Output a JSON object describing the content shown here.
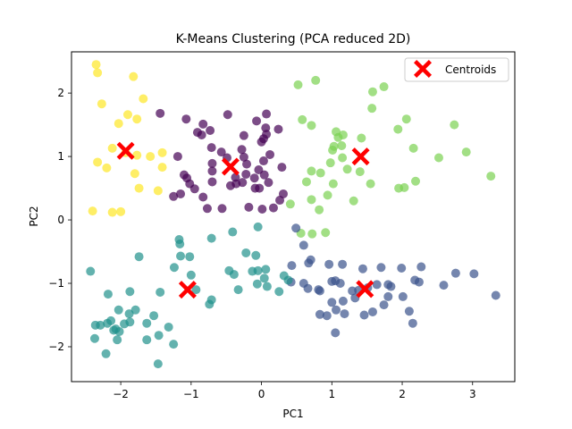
{
  "chart_data": {
    "type": "scatter",
    "title": "K-Means Clustering (PCA reduced 2D)",
    "xlabel": "PC1",
    "ylabel": "PC2",
    "xlim": [
      -2.7,
      3.6
    ],
    "ylim": [
      -2.55,
      2.65
    ],
    "xticks": [
      -2,
      -1,
      0,
      1,
      2,
      3
    ],
    "yticks": [
      -2,
      -1,
      0,
      1,
      2
    ],
    "grid": false,
    "legend": {
      "position": "top-right",
      "entries": [
        "Centroids"
      ]
    },
    "centroid_color": "#ff0000",
    "series": [
      {
        "color": "#fde725",
        "points": [
          [
            -2.35,
            2.45
          ],
          [
            -2.33,
            2.32
          ],
          [
            -1.82,
            2.26
          ],
          [
            -2.27,
            1.83
          ],
          [
            -1.68,
            1.91
          ],
          [
            -2.03,
            1.52
          ],
          [
            -1.9,
            1.66
          ],
          [
            -1.77,
            1.59
          ],
          [
            -2.12,
            1.13
          ],
          [
            -1.93,
            1.06
          ],
          [
            -1.77,
            1.02
          ],
          [
            -1.58,
            1.0
          ],
          [
            -1.41,
            1.06
          ],
          [
            -2.33,
            0.91
          ],
          [
            -2.2,
            0.82
          ],
          [
            -1.8,
            0.73
          ],
          [
            -1.41,
            0.83
          ],
          [
            -1.74,
            0.5
          ],
          [
            -1.47,
            0.46
          ],
          [
            -2.4,
            0.14
          ],
          [
            -2.12,
            0.12
          ],
          [
            -2.0,
            0.13
          ]
        ]
      },
      {
        "color": "#440154",
        "points": [
          [
            -1.44,
            1.68
          ],
          [
            -1.07,
            1.59
          ],
          [
            -0.83,
            1.51
          ],
          [
            -0.73,
            1.41
          ],
          [
            -0.48,
            1.66
          ],
          [
            -0.91,
            1.38
          ],
          [
            -0.85,
            1.34
          ],
          [
            -0.25,
            1.33
          ],
          [
            -0.07,
            1.56
          ],
          [
            0.07,
            1.67
          ],
          [
            0.06,
            1.45
          ],
          [
            0.24,
            1.43
          ],
          [
            -0.71,
            1.14
          ],
          [
            -0.57,
            1.07
          ],
          [
            -0.28,
            1.11
          ],
          [
            0.0,
            1.23
          ],
          [
            0.07,
            1.35
          ],
          [
            0.03,
            1.28
          ],
          [
            -1.19,
            1.0
          ],
          [
            -0.7,
            0.89
          ],
          [
            -0.49,
            0.98
          ],
          [
            -0.25,
            0.99
          ],
          [
            0.12,
            1.03
          ],
          [
            0.03,
            0.93
          ],
          [
            -0.21,
            0.88
          ],
          [
            -0.04,
            0.79
          ],
          [
            0.29,
            0.83
          ],
          [
            -0.7,
            0.77
          ],
          [
            -0.37,
            0.67
          ],
          [
            -0.22,
            0.72
          ],
          [
            -0.1,
            0.66
          ],
          [
            0.04,
            0.71
          ],
          [
            -1.1,
            0.71
          ],
          [
            -1.06,
            0.66
          ],
          [
            -1.02,
            0.57
          ],
          [
            -0.7,
            0.6
          ],
          [
            -0.44,
            0.54
          ],
          [
            -0.36,
            0.57
          ],
          [
            -0.27,
            0.59
          ],
          [
            -0.09,
            0.5
          ],
          [
            -0.03,
            0.5
          ],
          [
            0.1,
            0.59
          ],
          [
            -1.15,
            0.41
          ],
          [
            -1.25,
            0.37
          ],
          [
            -0.95,
            0.49
          ],
          [
            -0.83,
            0.36
          ],
          [
            0.31,
            0.41
          ],
          [
            0.26,
            0.31
          ],
          [
            -0.77,
            0.18
          ],
          [
            -0.56,
            0.18
          ],
          [
            -0.18,
            0.2
          ],
          [
            0.01,
            0.17
          ],
          [
            0.17,
            0.19
          ]
        ]
      },
      {
        "color": "#7ad151",
        "points": [
          [
            0.52,
            2.13
          ],
          [
            0.77,
            2.2
          ],
          [
            1.58,
            2.02
          ],
          [
            1.74,
            2.1
          ],
          [
            1.57,
            1.76
          ],
          [
            2.06,
            1.59
          ],
          [
            1.94,
            1.43
          ],
          [
            2.74,
            1.5
          ],
          [
            0.58,
            1.58
          ],
          [
            0.71,
            1.49
          ],
          [
            1.06,
            1.39
          ],
          [
            1.09,
            1.3
          ],
          [
            1.16,
            1.34
          ],
          [
            1.42,
            1.29
          ],
          [
            1.14,
            1.17
          ],
          [
            1.03,
            1.16
          ],
          [
            1.01,
            1.1
          ],
          [
            2.16,
            1.13
          ],
          [
            2.91,
            1.07
          ],
          [
            2.52,
            0.98
          ],
          [
            1.15,
            0.98
          ],
          [
            0.98,
            0.9
          ],
          [
            1.22,
            0.8
          ],
          [
            1.4,
            0.76
          ],
          [
            0.71,
            0.77
          ],
          [
            0.84,
            0.74
          ],
          [
            0.64,
            0.6
          ],
          [
            1.02,
            0.57
          ],
          [
            1.55,
            0.57
          ],
          [
            1.95,
            0.5
          ],
          [
            2.03,
            0.51
          ],
          [
            2.19,
            0.61
          ],
          [
            3.26,
            0.69
          ],
          [
            0.71,
            0.32
          ],
          [
            0.82,
            0.16
          ],
          [
            0.41,
            0.25
          ],
          [
            0.94,
            0.39
          ],
          [
            1.31,
            0.3
          ],
          [
            0.56,
            -0.21
          ],
          [
            0.72,
            -0.22
          ],
          [
            0.91,
            -0.2
          ]
        ]
      },
      {
        "color": "#3b528b",
        "points": [
          [
            0.49,
            -0.13
          ],
          [
            0.6,
            -0.4
          ],
          [
            0.43,
            -0.72
          ],
          [
            0.67,
            -0.68
          ],
          [
            0.7,
            -0.63
          ],
          [
            0.96,
            -0.7
          ],
          [
            1.15,
            -0.7
          ],
          [
            1.44,
            -0.77
          ],
          [
            1.7,
            -0.75
          ],
          [
            1.99,
            -0.76
          ],
          [
            2.27,
            -0.74
          ],
          [
            2.76,
            -0.84
          ],
          [
            3.02,
            -0.85
          ],
          [
            0.42,
            -0.98
          ],
          [
            0.6,
            -1.0
          ],
          [
            0.66,
            -1.08
          ],
          [
            0.81,
            -1.1
          ],
          [
            0.83,
            -1.12
          ],
          [
            1.0,
            -0.97
          ],
          [
            1.05,
            -0.96
          ],
          [
            1.12,
            -1.0
          ],
          [
            1.29,
            -1.12
          ],
          [
            1.38,
            -1.11
          ],
          [
            1.51,
            -1.07
          ],
          [
            1.64,
            -1.02
          ],
          [
            1.8,
            -1.02
          ],
          [
            1.84,
            -1.05
          ],
          [
            2.18,
            -0.95
          ],
          [
            2.24,
            -0.98
          ],
          [
            2.59,
            -1.03
          ],
          [
            3.33,
            -1.19
          ],
          [
            1.16,
            -1.28
          ],
          [
            1.33,
            -1.23
          ],
          [
            1.0,
            -1.3
          ],
          [
            1.8,
            -1.21
          ],
          [
            2.01,
            -1.21
          ],
          [
            1.74,
            -1.34
          ],
          [
            1.06,
            -1.42
          ],
          [
            1.18,
            -1.48
          ],
          [
            1.46,
            -1.5
          ],
          [
            1.58,
            -1.45
          ],
          [
            2.1,
            -1.44
          ],
          [
            2.15,
            -1.63
          ],
          [
            0.83,
            -1.49
          ],
          [
            0.93,
            -1.51
          ],
          [
            1.05,
            -1.78
          ]
        ]
      },
      {
        "color": "#21918c",
        "points": [
          [
            -1.17,
            -0.31
          ],
          [
            -1.16,
            -0.38
          ],
          [
            -0.71,
            -0.29
          ],
          [
            -0.41,
            -0.19
          ],
          [
            -0.05,
            -0.11
          ],
          [
            -2.43,
            -0.81
          ],
          [
            -1.74,
            -0.58
          ],
          [
            -1.15,
            -0.57
          ],
          [
            -1.02,
            -0.58
          ],
          [
            -0.22,
            -0.52
          ],
          [
            -0.08,
            -0.56
          ],
          [
            -1.24,
            -0.75
          ],
          [
            -1.0,
            -0.87
          ],
          [
            -0.46,
            -0.8
          ],
          [
            -0.39,
            -0.86
          ],
          [
            -0.13,
            -0.81
          ],
          [
            -0.05,
            -0.8
          ],
          [
            0.06,
            -0.78
          ],
          [
            0.04,
            -0.92
          ],
          [
            0.32,
            -0.88
          ],
          [
            0.38,
            -0.95
          ],
          [
            -1.44,
            -1.14
          ],
          [
            -0.93,
            -1.1
          ],
          [
            -0.33,
            -1.1
          ],
          [
            -0.06,
            -1.01
          ],
          [
            0.08,
            -1.05
          ],
          [
            0.25,
            -1.13
          ],
          [
            -2.18,
            -1.17
          ],
          [
            -1.87,
            -1.13
          ],
          [
            -0.71,
            -1.26
          ],
          [
            -0.74,
            -1.33
          ],
          [
            -2.03,
            -1.42
          ],
          [
            -1.88,
            -1.48
          ],
          [
            -1.79,
            -1.42
          ],
          [
            -1.53,
            -1.51
          ],
          [
            -1.63,
            -1.63
          ],
          [
            -1.32,
            -1.69
          ],
          [
            -2.36,
            -1.66
          ],
          [
            -2.29,
            -1.66
          ],
          [
            -2.19,
            -1.63
          ],
          [
            -2.14,
            -1.59
          ],
          [
            -2.1,
            -1.74
          ],
          [
            -2.07,
            -1.72
          ],
          [
            -1.95,
            -1.64
          ],
          [
            -2.02,
            -1.76
          ],
          [
            -1.87,
            -1.61
          ],
          [
            -2.05,
            -1.89
          ],
          [
            -2.37,
            -1.87
          ],
          [
            -1.63,
            -1.89
          ],
          [
            -1.46,
            -1.82
          ],
          [
            -1.25,
            -1.96
          ],
          [
            -2.21,
            -2.11
          ],
          [
            -1.47,
            -2.27
          ]
        ]
      }
    ],
    "centroids": [
      [
        -1.93,
        1.09
      ],
      [
        -0.44,
        0.84
      ],
      [
        1.41,
        1.0
      ],
      [
        1.47,
        -1.09
      ],
      [
        -1.05,
        -1.1
      ]
    ]
  }
}
